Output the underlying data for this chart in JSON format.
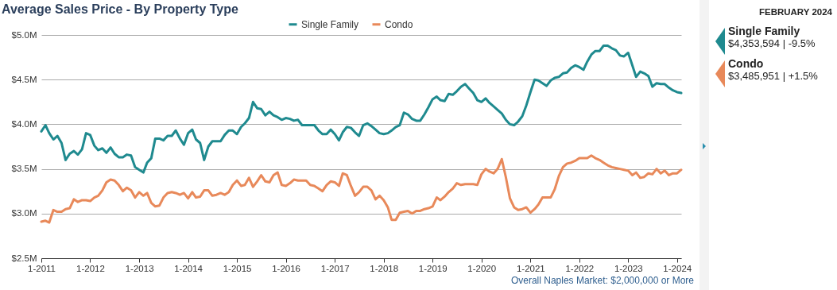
{
  "chart_data": [
    {
      "type": "line",
      "title": "Average Sales Price - By Property Type",
      "legend": "top",
      "grid": "y",
      "marker": "none",
      "line_style": "solid",
      "annotations": [
        "Overall Naples Market: $2,000,000 or More"
      ],
      "xlim": [
        "2011-01",
        "2024-02"
      ],
      "xticks": [
        {
          "value": "2011-01",
          "label": "1-2011"
        },
        {
          "value": "2012-01",
          "label": "1-2012"
        },
        {
          "value": "2013-01",
          "label": "1-2013"
        },
        {
          "value": "2014-01",
          "label": "1-2014"
        },
        {
          "value": "2015-01",
          "label": "1-2015"
        },
        {
          "value": "2016-01",
          "label": "1-2016"
        },
        {
          "value": "2017-01",
          "label": "1-2017"
        },
        {
          "value": "2018-01",
          "label": "1-2018"
        },
        {
          "value": "2019-01",
          "label": "1-2019"
        },
        {
          "value": "2020-01",
          "label": "1-2020"
        },
        {
          "value": "2021-01",
          "label": "1-2021"
        },
        {
          "value": "2022-01",
          "label": "1-2022"
        },
        {
          "value": "2023-01",
          "label": "1-2023"
        },
        {
          "value": "2024-01",
          "label": "1-2024"
        }
      ],
      "ylim": [
        2.5,
        5.0
      ],
      "yticks": [
        {
          "value": 2.5,
          "label": "$2.5M"
        },
        {
          "value": 3.0,
          "label": "$3.0M"
        },
        {
          "value": 3.5,
          "label": "$3.5M"
        },
        {
          "value": 4.0,
          "label": "$4.0M"
        },
        {
          "value": 4.5,
          "label": "$4.5M"
        },
        {
          "value": 5.0,
          "label": "$5.0M"
        }
      ],
      "x": [
        "2011-01",
        "2011-02",
        "2011-03",
        "2011-04",
        "2011-05",
        "2011-06",
        "2011-07",
        "2011-08",
        "2011-09",
        "2011-10",
        "2011-11",
        "2011-12",
        "2012-01",
        "2012-02",
        "2012-03",
        "2012-04",
        "2012-05",
        "2012-06",
        "2012-07",
        "2012-08",
        "2012-09",
        "2012-10",
        "2012-11",
        "2012-12",
        "2013-01",
        "2013-02",
        "2013-03",
        "2013-04",
        "2013-05",
        "2013-06",
        "2013-07",
        "2013-08",
        "2013-09",
        "2013-10",
        "2013-11",
        "2013-12",
        "2014-01",
        "2014-02",
        "2014-03",
        "2014-04",
        "2014-05",
        "2014-06",
        "2014-07",
        "2014-08",
        "2014-09",
        "2014-10",
        "2014-11",
        "2014-12",
        "2015-01",
        "2015-02",
        "2015-03",
        "2015-04",
        "2015-05",
        "2015-06",
        "2015-07",
        "2015-08",
        "2015-09",
        "2015-10",
        "2015-11",
        "2015-12",
        "2016-01",
        "2016-02",
        "2016-03",
        "2016-04",
        "2016-05",
        "2016-06",
        "2016-07",
        "2016-08",
        "2016-09",
        "2016-10",
        "2016-11",
        "2016-12",
        "2017-01",
        "2017-02",
        "2017-03",
        "2017-04",
        "2017-05",
        "2017-06",
        "2017-07",
        "2017-08",
        "2017-09",
        "2017-10",
        "2017-11",
        "2017-12",
        "2018-01",
        "2018-02",
        "2018-03",
        "2018-04",
        "2018-05",
        "2018-06",
        "2018-07",
        "2018-08",
        "2018-09",
        "2018-10",
        "2018-11",
        "2018-12",
        "2019-01",
        "2019-02",
        "2019-03",
        "2019-04",
        "2019-05",
        "2019-06",
        "2019-07",
        "2019-08",
        "2019-09",
        "2019-10",
        "2019-11",
        "2019-12",
        "2020-01",
        "2020-02",
        "2020-03",
        "2020-04",
        "2020-05",
        "2020-06",
        "2020-07",
        "2020-08",
        "2020-09",
        "2020-10",
        "2020-11",
        "2020-12",
        "2021-01",
        "2021-02",
        "2021-03",
        "2021-04",
        "2021-05",
        "2021-06",
        "2021-07",
        "2021-08",
        "2021-09",
        "2021-10",
        "2021-11",
        "2021-12",
        "2022-01",
        "2022-02",
        "2022-03",
        "2022-04",
        "2022-05",
        "2022-06",
        "2022-07",
        "2022-08",
        "2022-09",
        "2022-10",
        "2022-11",
        "2022-12",
        "2023-01",
        "2023-02",
        "2023-03",
        "2023-04",
        "2023-05",
        "2023-06",
        "2023-07",
        "2023-08",
        "2023-09",
        "2023-10",
        "2023-11",
        "2023-12",
        "2024-01",
        "2024-02"
      ],
      "series": [
        {
          "name": "Single Family",
          "color": "#1f8a8f",
          "values": [
            3.92,
            3.99,
            3.9,
            3.83,
            3.87,
            3.79,
            3.6,
            3.67,
            3.7,
            3.66,
            3.72,
            3.9,
            3.88,
            3.76,
            3.71,
            3.73,
            3.68,
            3.74,
            3.67,
            3.63,
            3.63,
            3.66,
            3.65,
            3.52,
            3.49,
            3.46,
            3.57,
            3.62,
            3.84,
            3.84,
            3.82,
            3.87,
            3.87,
            3.93,
            3.84,
            3.77,
            3.9,
            3.94,
            3.83,
            3.79,
            3.6,
            3.75,
            3.81,
            3.81,
            3.81,
            3.88,
            3.93,
            3.93,
            3.89,
            3.97,
            4.01,
            4.07,
            4.25,
            4.18,
            4.17,
            4.1,
            4.14,
            4.1,
            4.08,
            4.05,
            4.07,
            4.06,
            4.04,
            4.05,
            3.99,
            3.99,
            3.99,
            3.99,
            3.93,
            3.89,
            3.89,
            3.94,
            3.89,
            3.82,
            3.91,
            3.97,
            3.96,
            3.91,
            3.87,
            3.99,
            4.01,
            3.98,
            3.94,
            3.9,
            3.89,
            3.9,
            3.93,
            3.97,
            3.99,
            4.13,
            4.11,
            4.06,
            4.04,
            4.04,
            4.11,
            4.19,
            4.28,
            4.31,
            4.27,
            4.26,
            4.34,
            4.33,
            4.37,
            4.42,
            4.45,
            4.4,
            4.35,
            4.27,
            4.25,
            4.29,
            4.24,
            4.2,
            4.16,
            4.12,
            4.05,
            4.0,
            3.99,
            4.03,
            4.09,
            4.21,
            4.36,
            4.5,
            4.49,
            4.46,
            4.43,
            4.49,
            4.52,
            4.53,
            4.57,
            4.58,
            4.63,
            4.66,
            4.64,
            4.61,
            4.7,
            4.78,
            4.82,
            4.82,
            4.88,
            4.88,
            4.85,
            4.83,
            4.77,
            4.76,
            4.8,
            4.66,
            4.53,
            4.59,
            4.57,
            4.54,
            4.42,
            4.46,
            4.45,
            4.45,
            4.41,
            4.38,
            4.36,
            4.35
          ]
        },
        {
          "name": "Condo",
          "color": "#e8895a",
          "values": [
            2.91,
            2.92,
            2.9,
            3.04,
            3.02,
            3.02,
            3.05,
            3.06,
            3.16,
            3.13,
            3.15,
            3.15,
            3.14,
            3.18,
            3.2,
            3.26,
            3.35,
            3.38,
            3.37,
            3.32,
            3.25,
            3.29,
            3.26,
            3.18,
            3.24,
            3.2,
            3.23,
            3.12,
            3.08,
            3.09,
            3.18,
            3.23,
            3.24,
            3.23,
            3.21,
            3.23,
            3.17,
            3.24,
            3.18,
            3.19,
            3.26,
            3.26,
            3.2,
            3.21,
            3.23,
            3.21,
            3.24,
            3.32,
            3.37,
            3.31,
            3.32,
            3.4,
            3.3,
            3.36,
            3.43,
            3.36,
            3.35,
            3.43,
            3.46,
            3.32,
            3.31,
            3.34,
            3.38,
            3.37,
            3.37,
            3.37,
            3.32,
            3.31,
            3.28,
            3.25,
            3.32,
            3.36,
            3.35,
            3.31,
            3.45,
            3.43,
            3.31,
            3.2,
            3.24,
            3.3,
            3.3,
            3.26,
            3.16,
            3.2,
            3.15,
            3.07,
            2.93,
            2.93,
            3.01,
            3.02,
            3.03,
            3.0,
            3.03,
            3.03,
            3.05,
            3.06,
            3.08,
            3.18,
            3.15,
            3.19,
            3.24,
            3.28,
            3.34,
            3.32,
            3.33,
            3.33,
            3.33,
            3.32,
            3.44,
            3.5,
            3.47,
            3.45,
            3.5,
            3.61,
            3.41,
            3.17,
            3.07,
            3.04,
            3.05,
            3.07,
            3.01,
            3.05,
            3.1,
            3.18,
            3.18,
            3.18,
            3.27,
            3.42,
            3.52,
            3.56,
            3.57,
            3.59,
            3.62,
            3.62,
            3.62,
            3.65,
            3.62,
            3.6,
            3.57,
            3.54,
            3.52,
            3.51,
            3.5,
            3.49,
            3.48,
            3.43,
            3.46,
            3.4,
            3.41,
            3.45,
            3.44,
            3.5,
            3.45,
            3.48,
            3.43,
            3.45,
            3.45,
            3.49
          ]
        }
      ]
    },
    {
      "type": "other",
      "title": "FEBRUARY 2024",
      "annotations": [
        "Single Family",
        "$4,353,594 | -9.5%",
        "Condo",
        "$3,485,951 | +1.5%"
      ]
    }
  ]
}
